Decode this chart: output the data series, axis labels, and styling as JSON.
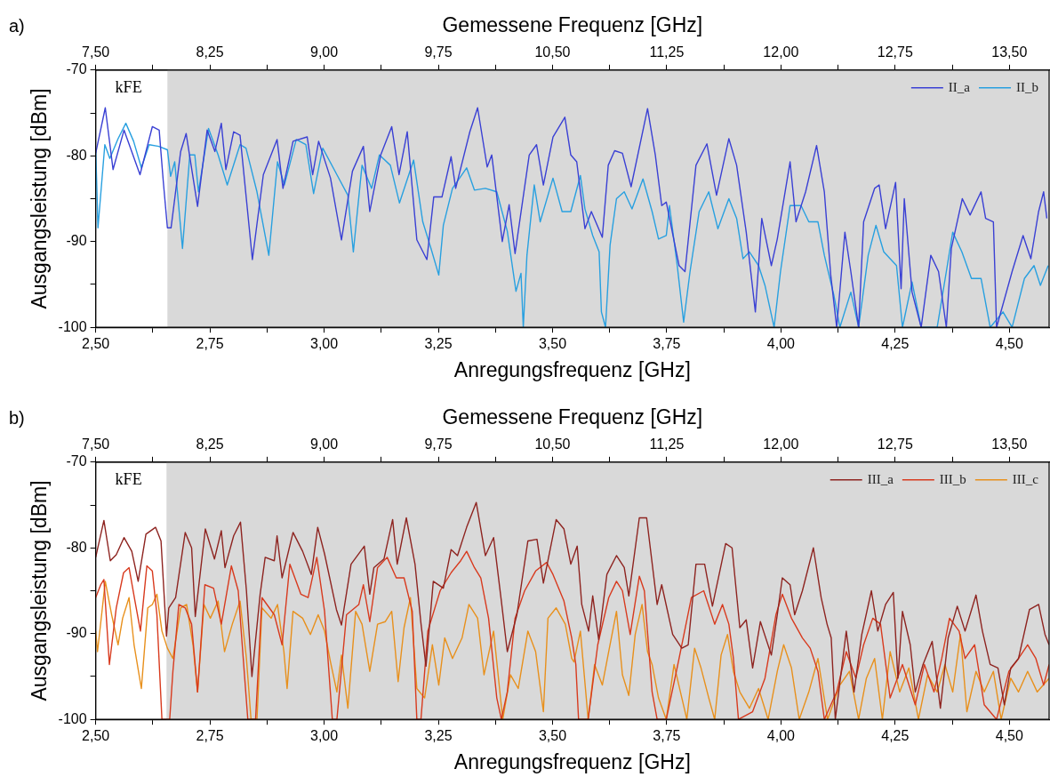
{
  "chart_data": [
    {
      "type": "line",
      "title": "a)",
      "xlabel": "Anregungsfrequenz [GHz]",
      "x2label": "Gemessene Frequenz [GHz]",
      "ylabel": "Ausgangsleistung [dBm]",
      "annotations": [
        "kFE"
      ],
      "xlim": [
        2.5,
        4.587
      ],
      "x2lim": [
        7.5,
        13.761
      ],
      "ylim": [
        -100,
        -70
      ],
      "xticks": [
        {
          "value": 2.5,
          "label": "2,50"
        },
        {
          "value": 2.625,
          "label": null
        },
        {
          "value": 2.75,
          "label": "2,75"
        },
        {
          "value": 2.875,
          "label": null
        },
        {
          "value": 3.0,
          "label": "3,00"
        },
        {
          "value": 3.125,
          "label": null
        },
        {
          "value": 3.25,
          "label": "3,25"
        },
        {
          "value": 3.375,
          "label": null
        },
        {
          "value": 3.5,
          "label": "3,50"
        },
        {
          "value": 3.625,
          "label": null
        },
        {
          "value": 3.75,
          "label": "3,75"
        },
        {
          "value": 3.875,
          "label": null
        },
        {
          "value": 4.0,
          "label": "4,00"
        },
        {
          "value": 4.125,
          "label": null
        },
        {
          "value": 4.25,
          "label": "4,25"
        },
        {
          "value": 4.375,
          "label": null
        },
        {
          "value": 4.5,
          "label": "4,50"
        }
      ],
      "x2ticks": [
        {
          "value": 7.5,
          "label": "7,50"
        },
        {
          "value": 7.875,
          "label": null
        },
        {
          "value": 8.25,
          "label": "8,25"
        },
        {
          "value": 8.625,
          "label": null
        },
        {
          "value": 9.0,
          "label": "9,00"
        },
        {
          "value": 9.375,
          "label": null
        },
        {
          "value": 9.75,
          "label": "9,75"
        },
        {
          "value": 10.125,
          "label": null
        },
        {
          "value": 10.5,
          "label": "10,50"
        },
        {
          "value": 10.875,
          "label": null
        },
        {
          "value": 11.25,
          "label": "11,25"
        },
        {
          "value": 11.625,
          "label": null
        },
        {
          "value": 12.0,
          "label": "12,00"
        },
        {
          "value": 12.375,
          "label": null
        },
        {
          "value": 12.75,
          "label": "12,75"
        },
        {
          "value": 13.125,
          "label": null
        },
        {
          "value": 13.5,
          "label": "13,50"
        }
      ],
      "yticks": [
        -100,
        {
          "value": -95,
          "label": null
        },
        -90,
        {
          "value": -85,
          "label": null
        },
        -80,
        {
          "value": -75,
          "label": null
        },
        -70
      ],
      "bands": [
        {
          "axis": "x",
          "from": 2.657,
          "to": 4.587,
          "color": "#d9d9d9"
        }
      ],
      "grid": false,
      "legend": "top right",
      "marker": "none",
      "line_style": "solid",
      "series": [
        {
          "name": "II_a",
          "color": "#3a40d4",
          "x": [
            2.5,
            2.521,
            2.538,
            2.562,
            2.597,
            2.624,
            2.639,
            2.648,
            2.657,
            2.665,
            2.686,
            2.698,
            2.723,
            2.744,
            2.761,
            2.775,
            2.785,
            2.802,
            2.816,
            2.843,
            2.867,
            2.897,
            2.91,
            2.932,
            2.963,
            2.975,
            2.988,
            3.014,
            3.038,
            3.062,
            3.086,
            3.1,
            3.124,
            3.148,
            3.164,
            3.182,
            3.203,
            3.225,
            3.24,
            3.258,
            3.278,
            3.288,
            3.319,
            3.336,
            3.357,
            3.367,
            3.39,
            3.405,
            3.418,
            3.449,
            3.465,
            3.48,
            3.501,
            3.527,
            3.54,
            3.553,
            3.571,
            3.585,
            3.609,
            3.622,
            3.636,
            3.653,
            3.672,
            3.708,
            3.725,
            3.739,
            3.749,
            3.777,
            3.79,
            3.814,
            3.838,
            3.859,
            3.886,
            3.903,
            3.924,
            3.944,
            3.958,
            3.979,
            3.992,
            4.02,
            4.033,
            4.054,
            4.078,
            4.095,
            4.109,
            4.122,
            4.14,
            4.153,
            4.17,
            4.181,
            4.205,
            4.215,
            4.229,
            4.251,
            4.263,
            4.27,
            4.287,
            4.307,
            4.328,
            4.345,
            4.362,
            4.373,
            4.397,
            4.414,
            4.438,
            4.448,
            4.465,
            4.472,
            4.506,
            4.53,
            4.547,
            4.564,
            4.575,
            4.582
          ],
          "values": [
            -79.7,
            -74.4,
            -81.6,
            -77.0,
            -82.2,
            -76.6,
            -77.0,
            -83.0,
            -88.4,
            -88.4,
            -79.5,
            -77.4,
            -85.9,
            -77.0,
            -79.5,
            -76.2,
            -81.6,
            -77.2,
            -77.6,
            -92.1,
            -82.2,
            -78.1,
            -83.8,
            -78.3,
            -77.8,
            -82.2,
            -78.3,
            -82.6,
            -89.8,
            -81.8,
            -78.9,
            -86.5,
            -79.9,
            -76.6,
            -82.2,
            -77.2,
            -89.8,
            -92.1,
            -84.8,
            -84.8,
            -80.1,
            -83.8,
            -77.2,
            -74.4,
            -81.3,
            -79.9,
            -90.0,
            -85.7,
            -91.4,
            -79.9,
            -78.7,
            -83.4,
            -77.8,
            -75.5,
            -79.9,
            -80.7,
            -88.5,
            -86.5,
            -89.5,
            -81.1,
            -79.4,
            -79.7,
            -83.6,
            -74.5,
            -79.9,
            -85.8,
            -85.4,
            -92.8,
            -93.5,
            -81.1,
            -78.6,
            -84.6,
            -78.0,
            -81.1,
            -88.9,
            -98.2,
            -87.3,
            -92.8,
            -89.7,
            -80.7,
            -87.7,
            -84.2,
            -78.8,
            -84.2,
            -93.9,
            -100,
            -88.9,
            -93.5,
            -100,
            -87.7,
            -83.8,
            -83.4,
            -88.5,
            -83.1,
            -95.5,
            -85.0,
            -95.9,
            -100,
            -91.6,
            -93.5,
            -100,
            -90.8,
            -85.0,
            -86.9,
            -84.2,
            -87.3,
            -87.7,
            -100,
            -93.5,
            -89.3,
            -92.0,
            -86.5,
            -84.2,
            -87.3
          ]
        },
        {
          "name": "II_b",
          "color": "#28a0e0",
          "x": [
            2.5,
            2.505,
            2.52,
            2.531,
            2.549,
            2.566,
            2.583,
            2.6,
            2.617,
            2.638,
            2.657,
            2.664,
            2.673,
            2.69,
            2.706,
            2.717,
            2.725,
            2.747,
            2.768,
            2.788,
            2.816,
            2.829,
            2.853,
            2.879,
            2.898,
            2.913,
            2.939,
            2.96,
            2.977,
            2.997,
            3.028,
            3.052,
            3.064,
            3.083,
            3.104,
            3.121,
            3.145,
            3.165,
            3.196,
            3.216,
            3.234,
            3.251,
            3.261,
            3.281,
            3.312,
            3.329,
            3.353,
            3.378,
            3.401,
            3.42,
            3.431,
            3.436,
            3.444,
            3.46,
            3.473,
            3.501,
            3.521,
            3.54,
            3.561,
            3.571,
            3.588,
            3.602,
            3.607,
            3.616,
            3.626,
            3.64,
            3.657,
            3.674,
            3.698,
            3.718,
            3.732,
            3.749,
            3.756,
            3.773,
            3.787,
            3.801,
            3.821,
            3.842,
            3.862,
            3.886,
            3.903,
            3.917,
            3.931,
            3.951,
            3.965,
            3.985,
            3.999,
            4.02,
            4.044,
            4.061,
            4.081,
            4.095,
            4.116,
            4.129,
            4.153,
            4.17,
            4.191,
            4.208,
            4.225,
            4.239,
            4.253,
            4.266,
            4.287,
            4.307,
            4.342,
            4.362,
            4.376,
            4.396,
            4.417,
            4.438,
            4.458,
            4.486,
            4.506,
            4.533,
            4.554,
            4.568,
            4.585
          ],
          "values": [
            -79.1,
            -88.4,
            -78.7,
            -80.3,
            -78.0,
            -76.2,
            -78.3,
            -81.4,
            -78.7,
            -78.9,
            -79.3,
            -82.4,
            -80.7,
            -90.8,
            -79.9,
            -79.9,
            -84.2,
            -76.8,
            -79.9,
            -83.4,
            -78.7,
            -79.1,
            -84.2,
            -91.6,
            -80.7,
            -83.4,
            -78.1,
            -78.7,
            -84.4,
            -79.1,
            -82.2,
            -84.6,
            -91.2,
            -81.1,
            -83.8,
            -79.9,
            -81.1,
            -85.5,
            -80.5,
            -87.7,
            -90.8,
            -93.9,
            -88.1,
            -83.8,
            -81.4,
            -84.0,
            -83.8,
            -84.2,
            -88.8,
            -95.8,
            -93.7,
            -100,
            -91.6,
            -83.4,
            -87.7,
            -82.6,
            -86.5,
            -86.5,
            -82.3,
            -86.2,
            -89.3,
            -91.2,
            -98.2,
            -100,
            -90.4,
            -85.0,
            -84.2,
            -86.2,
            -82.7,
            -86.5,
            -89.7,
            -89.3,
            -85.8,
            -92.8,
            -99.4,
            -93.5,
            -86.5,
            -84.2,
            -88.5,
            -85.0,
            -87.3,
            -92.0,
            -91.2,
            -92.8,
            -95.1,
            -100,
            -93.5,
            -85.8,
            -85.8,
            -87.7,
            -87.7,
            -91.6,
            -96.3,
            -100,
            -95.9,
            -100,
            -91.6,
            -88.1,
            -91.2,
            -92.0,
            -92.8,
            -100,
            -94.7,
            -100,
            -100,
            -93.5,
            -88.9,
            -91.2,
            -94.3,
            -94.3,
            -100,
            -98.2,
            -100,
            -94.3,
            -92.8,
            -95.1,
            -92.8
          ]
        }
      ]
    },
    {
      "type": "line",
      "title": "b)",
      "xlabel": "Anregungsfrequenz [GHz]",
      "x2label": "Gemessene Frequenz [GHz]",
      "ylabel": "Ausgangsleistung [dBm]",
      "annotations": [
        "kFE"
      ],
      "xlim": [
        2.5,
        4.587
      ],
      "x2lim": [
        7.5,
        13.761
      ],
      "ylim": [
        -100,
        -70
      ],
      "xticks": [
        {
          "value": 2.5,
          "label": "2,50"
        },
        {
          "value": 2.625,
          "label": null
        },
        {
          "value": 2.75,
          "label": "2,75"
        },
        {
          "value": 2.875,
          "label": null
        },
        {
          "value": 3.0,
          "label": "3,00"
        },
        {
          "value": 3.125,
          "label": null
        },
        {
          "value": 3.25,
          "label": "3,25"
        },
        {
          "value": 3.375,
          "label": null
        },
        {
          "value": 3.5,
          "label": "3,50"
        },
        {
          "value": 3.625,
          "label": null
        },
        {
          "value": 3.75,
          "label": "3,75"
        },
        {
          "value": 3.875,
          "label": null
        },
        {
          "value": 4.0,
          "label": "4,00"
        },
        {
          "value": 4.125,
          "label": null
        },
        {
          "value": 4.25,
          "label": "4,25"
        },
        {
          "value": 4.375,
          "label": null
        },
        {
          "value": 4.5,
          "label": "4,50"
        }
      ],
      "x2ticks": [
        {
          "value": 7.5,
          "label": "7,50"
        },
        {
          "value": 7.875,
          "label": null
        },
        {
          "value": 8.25,
          "label": "8,25"
        },
        {
          "value": 8.625,
          "label": null
        },
        {
          "value": 9.0,
          "label": "9,00"
        },
        {
          "value": 9.375,
          "label": null
        },
        {
          "value": 9.75,
          "label": "9,75"
        },
        {
          "value": 10.125,
          "label": null
        },
        {
          "value": 10.5,
          "label": "10,50"
        },
        {
          "value": 10.875,
          "label": null
        },
        {
          "value": 11.25,
          "label": "11,25"
        },
        {
          "value": 11.625,
          "label": null
        },
        {
          "value": 12.0,
          "label": "12,00"
        },
        {
          "value": 12.375,
          "label": null
        },
        {
          "value": 12.75,
          "label": "12,75"
        },
        {
          "value": 13.125,
          "label": null
        },
        {
          "value": 13.5,
          "label": "13,50"
        }
      ],
      "yticks": [
        -100,
        {
          "value": -95,
          "label": null
        },
        -90,
        {
          "value": -85,
          "label": null
        },
        -80,
        {
          "value": -75,
          "label": null
        },
        -70
      ],
      "bands": [
        {
          "axis": "x",
          "from": 2.655,
          "to": 4.587,
          "color": "#d9d9d9"
        }
      ],
      "grid": false,
      "legend": "top right",
      "marker": "none",
      "line_style": "solid",
      "series": [
        {
          "name": "III_a",
          "color": "#8e2420",
          "x": [
            2.5,
            2.518,
            2.532,
            2.545,
            2.562,
            2.579,
            2.593,
            2.61,
            2.631,
            2.643,
            2.655,
            2.66,
            2.675,
            2.696,
            2.71,
            2.718,
            2.74,
            2.76,
            2.775,
            2.783,
            2.802,
            2.817,
            2.83,
            2.842,
            2.86,
            2.871,
            2.891,
            2.897,
            2.908,
            2.932,
            2.953,
            2.972,
            2.986,
            3.001,
            3.027,
            3.038,
            3.059,
            3.088,
            3.1,
            3.109,
            3.131,
            3.15,
            3.16,
            3.18,
            3.199,
            3.212,
            3.223,
            3.239,
            3.261,
            3.278,
            3.292,
            3.312,
            3.333,
            3.353,
            3.371,
            3.388,
            3.401,
            3.422,
            3.446,
            3.466,
            3.48,
            3.508,
            3.525,
            3.54,
            3.554,
            3.564,
            3.579,
            3.588,
            3.601,
            3.619,
            3.64,
            3.657,
            3.667,
            3.69,
            3.706,
            3.729,
            3.739,
            3.763,
            3.783,
            3.797,
            3.814,
            3.833,
            3.85,
            3.879,
            3.893,
            3.91,
            3.924,
            3.938,
            3.955,
            3.979,
            3.992,
            4.003,
            4.02,
            4.03,
            4.047,
            4.071,
            4.088,
            4.101,
            4.11,
            4.119,
            4.143,
            4.16,
            4.177,
            4.198,
            4.212,
            4.229,
            4.246,
            4.256,
            4.266,
            4.283,
            4.294,
            4.311,
            4.331,
            4.349,
            4.366,
            4.386,
            4.403,
            4.427,
            4.441,
            4.458,
            4.475,
            4.489,
            4.503,
            4.52,
            4.544,
            4.564,
            4.578,
            4.587
          ],
          "values": [
            -81.1,
            -76.8,
            -81.5,
            -80.8,
            -78.8,
            -80.4,
            -83.9,
            -78.4,
            -77.6,
            -79.2,
            -90.3,
            -87.0,
            -85.8,
            -78.2,
            -80.0,
            -88.0,
            -77.8,
            -81.3,
            -78.0,
            -82.3,
            -78.6,
            -77.0,
            -85.0,
            -95.0,
            -85.4,
            -81.1,
            -81.5,
            -78.6,
            -83.5,
            -78.2,
            -80.4,
            -83.1,
            -77.6,
            -80.7,
            -87.2,
            -89.0,
            -81.9,
            -79.8,
            -85.4,
            -82.3,
            -81.3,
            -76.7,
            -81.9,
            -76.5,
            -81.9,
            -88.8,
            -93.8,
            -83.9,
            -84.7,
            -80.2,
            -80.9,
            -77.6,
            -74.7,
            -80.9,
            -78.8,
            -86.2,
            -92.1,
            -87.8,
            -79.2,
            -79.0,
            -84.1,
            -76.7,
            -77.8,
            -81.9,
            -79.8,
            -86.6,
            -89.7,
            -85.6,
            -90.7,
            -83.1,
            -80.9,
            -82.3,
            -85.6,
            -76.5,
            -76.5,
            -86.6,
            -84.3,
            -90.1,
            -91.7,
            -91.3,
            -81.9,
            -81.9,
            -86.8,
            -79.5,
            -80.0,
            -89.3,
            -88.4,
            -94.0,
            -88.6,
            -92.5,
            -87.8,
            -83.5,
            -84.3,
            -87.8,
            -85.0,
            -80.0,
            -85.8,
            -88.9,
            -90.5,
            -100,
            -89.7,
            -96.8,
            -90.1,
            -85.0,
            -89.7,
            -86.6,
            -85.2,
            -95.2,
            -87.4,
            -91.3,
            -96.8,
            -93.6,
            -90.9,
            -98.7,
            -90.5,
            -86.8,
            -89.7,
            -85.5,
            -89.7,
            -93.6,
            -94.0,
            -98.3,
            -94.0,
            -92.9,
            -87.2,
            -86.6,
            -90.1,
            -91.3
          ]
        },
        {
          "name": "III_b",
          "color": "#d83a1e",
          "x": [
            2.5,
            2.511,
            2.518,
            2.53,
            2.545,
            2.561,
            2.573,
            2.586,
            2.598,
            2.612,
            2.624,
            2.634,
            2.645,
            2.662,
            2.669,
            2.682,
            2.696,
            2.71,
            2.723,
            2.739,
            2.758,
            2.775,
            2.797,
            2.812,
            2.823,
            2.833,
            2.85,
            2.864,
            2.891,
            2.908,
            2.925,
            2.949,
            2.965,
            2.984,
            3.001,
            3.018,
            3.028,
            3.049,
            3.076,
            3.086,
            3.1,
            3.117,
            3.138,
            3.158,
            3.175,
            3.193,
            3.203,
            3.212,
            3.227,
            3.254,
            3.278,
            3.299,
            3.312,
            3.329,
            3.343,
            3.36,
            3.378,
            3.388,
            3.401,
            3.418,
            3.439,
            3.463,
            3.487,
            3.501,
            3.525,
            3.542,
            3.551,
            3.557,
            3.578,
            3.599,
            3.623,
            3.64,
            3.653,
            3.67,
            3.69,
            3.701,
            3.718,
            3.729,
            3.749,
            3.777,
            3.804,
            3.831,
            3.855,
            3.872,
            3.886,
            3.896,
            3.907,
            3.938,
            3.965,
            3.989,
            4.003,
            4.023,
            4.047,
            4.064,
            4.081,
            4.095,
            4.122,
            4.143,
            4.164,
            4.181,
            4.201,
            4.218,
            4.239,
            4.266,
            4.294,
            4.314,
            4.335,
            4.352,
            4.369,
            4.39,
            4.403,
            4.424,
            4.445,
            4.472,
            4.499,
            4.52,
            4.54,
            4.558,
            4.575,
            4.587
          ],
          "values": [
            -85.8,
            -84.3,
            -83.7,
            -93.6,
            -87.0,
            -82.9,
            -82.3,
            -86.2,
            -89.7,
            -82.1,
            -82.7,
            -87.8,
            -100,
            -100,
            -94.4,
            -86.6,
            -87.0,
            -88.9,
            -96.8,
            -84.3,
            -84.7,
            -88.9,
            -82.1,
            -85.0,
            -92.9,
            -100,
            -100,
            -85.8,
            -87.8,
            -91.3,
            -81.9,
            -85.4,
            -85.8,
            -81.1,
            -87.4,
            -100,
            -100,
            -87.8,
            -86.6,
            -84.3,
            -88.6,
            -82.3,
            -81.1,
            -83.5,
            -83.5,
            -87.4,
            -100,
            -100,
            -89.7,
            -85.0,
            -82.9,
            -81.5,
            -80.4,
            -82.3,
            -83.5,
            -88.2,
            -97.5,
            -100,
            -96.8,
            -88.2,
            -85.0,
            -82.7,
            -81.7,
            -83.1,
            -86.2,
            -90.5,
            -93.6,
            -100,
            -100,
            -91.3,
            -85.8,
            -83.9,
            -85.0,
            -90.1,
            -83.3,
            -85.0,
            -96.8,
            -100,
            -100,
            -92.9,
            -85.8,
            -85.0,
            -88.9,
            -86.6,
            -88.9,
            -92.9,
            -100,
            -99.1,
            -95.2,
            -87.8,
            -85.4,
            -88.2,
            -90.5,
            -91.7,
            -94.4,
            -100,
            -96.8,
            -92.1,
            -95.2,
            -91.3,
            -88.2,
            -88.9,
            -97.5,
            -93.6,
            -98.3,
            -93.6,
            -96.8,
            -92.9,
            -88.2,
            -89.7,
            -92.9,
            -91.3,
            -98.3,
            -100,
            -94.4,
            -92.9,
            -91.3,
            -92.9,
            -96.0,
            -93.6
          ]
        },
        {
          "name": "III_c",
          "color": "#e8901c",
          "x": [
            2.5,
            2.504,
            2.513,
            2.521,
            2.535,
            2.549,
            2.559,
            2.573,
            2.584,
            2.6,
            2.614,
            2.624,
            2.634,
            2.645,
            2.657,
            2.669,
            2.686,
            2.699,
            2.713,
            2.723,
            2.737,
            2.751,
            2.768,
            2.782,
            2.799,
            2.816,
            2.83,
            2.84,
            2.853,
            2.864,
            2.884,
            2.898,
            2.912,
            2.919,
            2.932,
            2.953,
            2.97,
            2.987,
            3.001,
            3.014,
            3.028,
            3.038,
            3.052,
            3.069,
            3.083,
            3.1,
            3.117,
            3.134,
            3.148,
            3.162,
            3.175,
            3.189,
            3.203,
            3.22,
            3.237,
            3.251,
            3.264,
            3.281,
            3.302,
            3.317,
            3.336,
            3.35,
            3.371,
            3.391,
            3.408,
            3.425,
            3.446,
            3.463,
            3.48,
            3.49,
            3.508,
            3.528,
            3.542,
            3.547,
            3.561,
            3.578,
            3.592,
            3.609,
            3.623,
            3.64,
            3.653,
            3.667,
            3.681,
            3.696,
            3.708,
            3.718,
            3.732,
            3.749,
            3.766,
            3.78,
            3.794,
            3.811,
            3.825,
            3.842,
            3.855,
            3.869,
            3.883,
            3.896,
            3.91,
            3.931,
            3.951,
            3.972,
            3.992,
            4.006,
            4.023,
            4.04,
            4.061,
            4.081,
            4.102,
            4.129,
            4.15,
            4.17,
            4.187,
            4.205,
            4.222,
            4.239,
            4.26,
            4.28,
            4.301,
            4.321,
            4.342,
            4.359,
            4.376,
            4.393,
            4.407,
            4.427,
            4.445,
            4.465,
            4.482,
            4.503,
            4.52,
            4.54,
            4.561,
            4.587
          ],
          "values": [
            -89.7,
            -92.1,
            -87.8,
            -83.9,
            -87.8,
            -91.3,
            -88.2,
            -85.8,
            -91.3,
            -96.4,
            -87.0,
            -86.6,
            -85.4,
            -89.7,
            -91.7,
            -92.9,
            -87.0,
            -86.6,
            -91.3,
            -96.8,
            -86.6,
            -88.2,
            -86.2,
            -92.1,
            -88.9,
            -86.2,
            -92.9,
            -100,
            -100,
            -87.0,
            -88.2,
            -86.6,
            -92.1,
            -96.4,
            -87.4,
            -88.2,
            -90.1,
            -87.8,
            -89.7,
            -93.3,
            -96.8,
            -92.5,
            -98.7,
            -87.4,
            -88.9,
            -94.4,
            -88.9,
            -88.6,
            -87.4,
            -95.6,
            -89.3,
            -85.8,
            -96.4,
            -97.5,
            -91.3,
            -96.0,
            -90.5,
            -92.9,
            -90.5,
            -86.6,
            -88.2,
            -94.8,
            -89.7,
            -100,
            -94.8,
            -96.4,
            -89.7,
            -92.1,
            -99.1,
            -88.2,
            -87.0,
            -88.9,
            -92.9,
            -93.3,
            -89.7,
            -100,
            -93.6,
            -96.0,
            -92.1,
            -87.4,
            -94.8,
            -97.2,
            -90.1,
            -86.6,
            -92.1,
            -93.6,
            -97.5,
            -100,
            -93.6,
            -96.8,
            -100,
            -91.7,
            -94.0,
            -97.5,
            -100,
            -92.5,
            -90.1,
            -94.4,
            -96.8,
            -98.7,
            -96.4,
            -100,
            -94.4,
            -91.3,
            -94.0,
            -100,
            -96.8,
            -92.9,
            -100,
            -96.0,
            -94.4,
            -100,
            -95.2,
            -92.9,
            -100,
            -92.1,
            -96.8,
            -94.0,
            -100,
            -94.8,
            -96.8,
            -93.6,
            -96.8,
            -90.1,
            -99.1,
            -94.4,
            -96.8,
            -94.4,
            -100,
            -95.2,
            -96.8,
            -94.4,
            -96.8,
            -95.2
          ]
        }
      ]
    }
  ]
}
